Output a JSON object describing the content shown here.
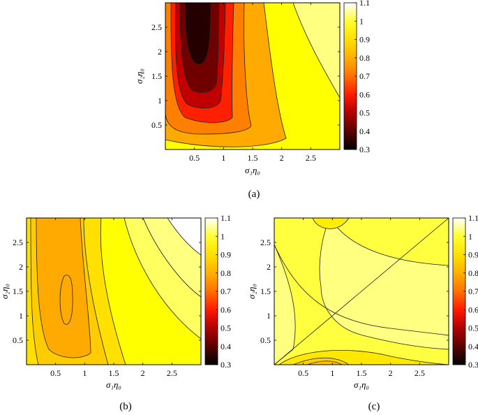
{
  "chart_data": [
    {
      "type": "contour",
      "panel_label": "(a)",
      "xlabel": "σ₁η₀",
      "ylabel": "σ₂η₀",
      "xlim": [
        0,
        3
      ],
      "ylim": [
        0,
        3
      ],
      "xticks": [
        0.5,
        1,
        1.5,
        2,
        2.5
      ],
      "yticks": [
        0.5,
        1,
        1.5,
        2,
        2.5
      ],
      "xtick_labels": [
        "0.5",
        "1",
        "1.5",
        "2",
        "2.5"
      ],
      "ytick_labels": [
        "0.5",
        "1",
        "1.5",
        "2",
        "2.5"
      ],
      "colorbar": {
        "min": 0.3,
        "max": 1.1,
        "ticks": [
          0.3,
          0.4,
          0.5,
          0.6,
          0.7,
          0.8,
          0.9,
          1,
          1.1
        ],
        "tick_labels": [
          "0.3",
          "0.4",
          "0.5",
          "0.6",
          "0.7",
          "0.8",
          "0.9",
          "1",
          "1.1"
        ],
        "colormap": "hot"
      },
      "min_location": [
        0.6,
        2.5
      ],
      "min_value": 0.33,
      "max_location": [
        3.0,
        3.0
      ],
      "max_value": 1.05
    },
    {
      "type": "contour",
      "panel_label": "(b)",
      "xlabel": "σ₁η₀",
      "ylabel": "σ₂η₀",
      "xlim": [
        0,
        3
      ],
      "ylim": [
        0,
        3
      ],
      "xticks": [
        0.5,
        1,
        1.5,
        2,
        2.5
      ],
      "yticks": [
        0.5,
        1,
        1.5,
        2,
        2.5
      ],
      "xtick_labels": [
        "0.5",
        "1",
        "1.5",
        "2",
        "2.5"
      ],
      "ytick_labels": [
        "0.5",
        "1",
        "1.5",
        "2",
        "2.5"
      ],
      "colorbar": {
        "min": 0.3,
        "max": 1.1,
        "ticks": [
          0.3,
          0.4,
          0.5,
          0.6,
          0.7,
          0.8,
          0.9,
          1,
          1.1
        ],
        "tick_labels": [
          "0.3",
          "0.4",
          "0.5",
          "0.6",
          "0.7",
          "0.8",
          "0.9",
          "1",
          "1.1"
        ],
        "colormap": "hot"
      },
      "min_location": [
        0.65,
        1.35
      ],
      "min_value": 0.82,
      "max_location": [
        3.0,
        3.0
      ],
      "max_value": 1.05
    },
    {
      "type": "contour",
      "panel_label": "(c)",
      "xlabel": "σ₁η₀",
      "ylabel": "σ₂η₀",
      "xlim": [
        0,
        3
      ],
      "ylim": [
        0,
        3
      ],
      "xticks": [
        0.5,
        1,
        1.5,
        2,
        2.5
      ],
      "yticks": [
        0.5,
        1,
        1.5,
        2,
        2.5
      ],
      "xtick_labels": [
        "0.5",
        "1",
        "1.5",
        "2",
        "2.5"
      ],
      "ytick_labels": [
        "0.5",
        "1",
        "1.5",
        "2",
        "2.5"
      ],
      "colorbar": {
        "min": 0.3,
        "max": 1.1,
        "ticks": [
          0.3,
          0.4,
          0.5,
          0.6,
          0.7,
          0.8,
          0.9,
          1,
          1.1
        ],
        "tick_labels": [
          "0.3",
          "0.4",
          "0.5",
          "0.6",
          "0.7",
          "0.8",
          "0.9",
          "1",
          "1.1"
        ],
        "colormap": "hot"
      },
      "min_location": [
        0.9,
        0.05
      ],
      "min_value": 0.88,
      "max_location": [
        0.05,
        1.0
      ],
      "max_value": 1.03
    }
  ]
}
